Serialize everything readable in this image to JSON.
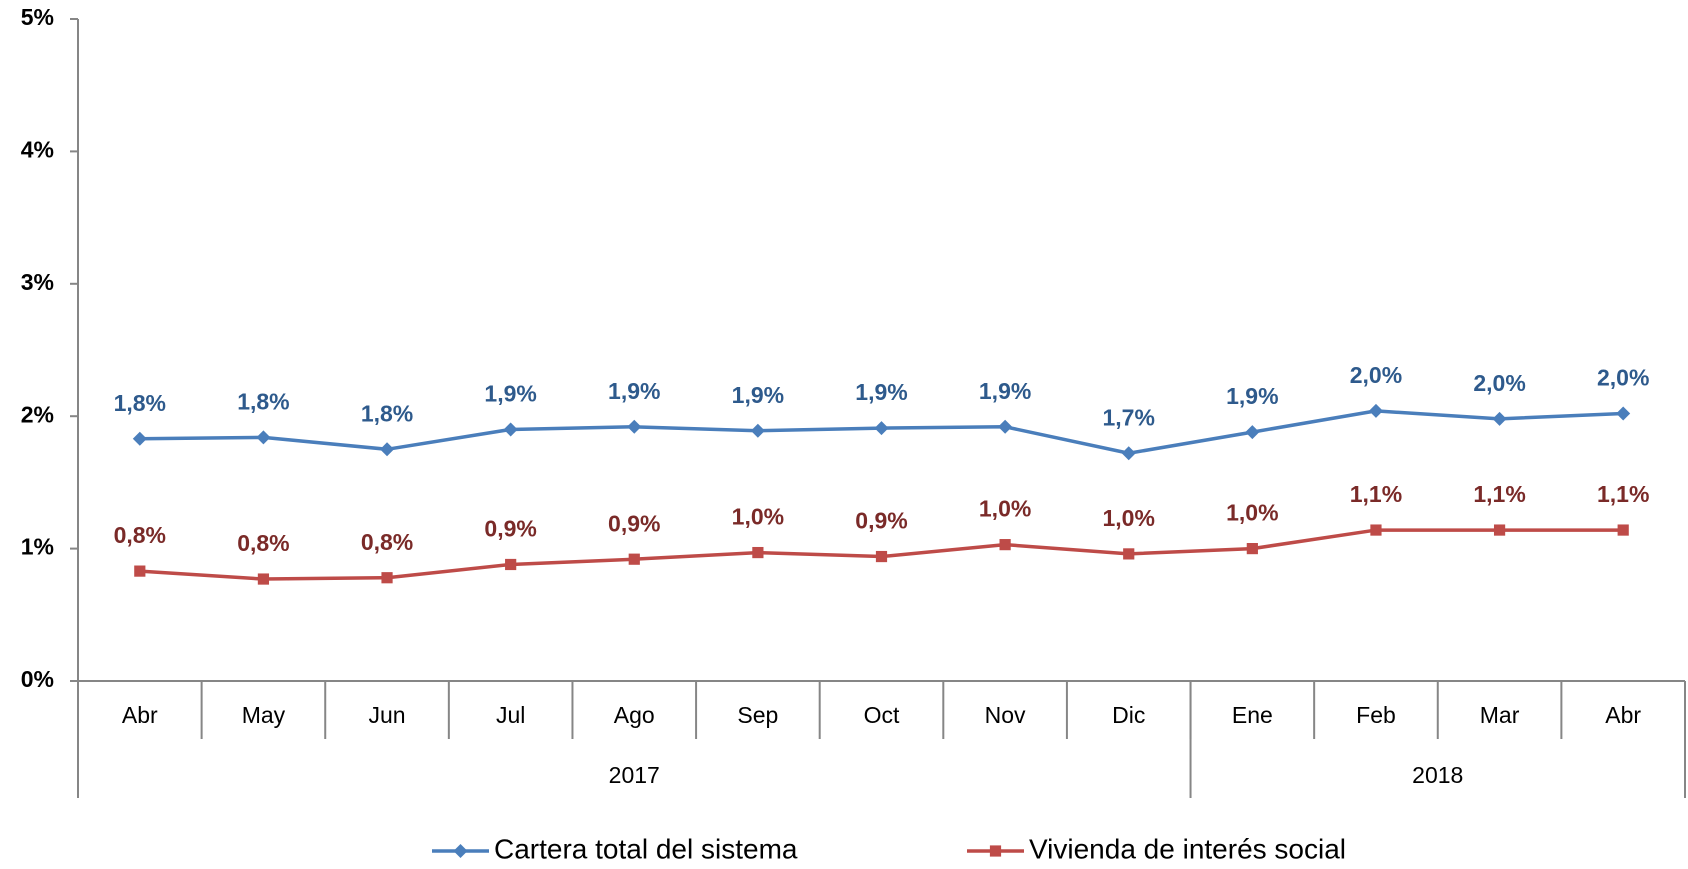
{
  "chart_data": {
    "type": "line",
    "categories": [
      "Abr",
      "May",
      "Jun",
      "Jul",
      "Ago",
      "Sep",
      "Oct",
      "Nov",
      "Dic",
      "Ene",
      "Feb",
      "Mar",
      "Abr"
    ],
    "x_groups": [
      {
        "name": "2017",
        "count": 9
      },
      {
        "name": "2018",
        "count": 4
      }
    ],
    "series": [
      {
        "name": "Cartera total del sistema",
        "color": "#4a7ebb",
        "label_color": "#2e5a8c",
        "marker": "diamond",
        "values": [
          1.83,
          1.84,
          1.75,
          1.9,
          1.92,
          1.89,
          1.91,
          1.92,
          1.72,
          1.88,
          2.04,
          1.98,
          2.02
        ],
        "value_labels": [
          "1,8%",
          "1,8%",
          "1,8%",
          "1,9%",
          "1,9%",
          "1,9%",
          "1,9%",
          "1,9%",
          "1,7%",
          "1,9%",
          "2,0%",
          "2,0%",
          "2,0%"
        ]
      },
      {
        "name": "Vivienda de interés social",
        "color": "#be4b48",
        "label_color": "#7a2a28",
        "marker": "square",
        "values": [
          0.83,
          0.77,
          0.78,
          0.88,
          0.92,
          0.97,
          0.94,
          1.03,
          0.96,
          1.0,
          1.14,
          1.14,
          1.14
        ],
        "value_labels": [
          "0,8%",
          "0,8%",
          "0,8%",
          "0,9%",
          "0,9%",
          "1,0%",
          "0,9%",
          "1,0%",
          "1,0%",
          "1,0%",
          "1,1%",
          "1,1%",
          "1,1%"
        ]
      }
    ],
    "ylim": [
      0,
      5
    ],
    "yticks": [
      {
        "value": 0,
        "label": "0%"
      },
      {
        "value": 1,
        "label": "1%"
      },
      {
        "value": 2,
        "label": "2%"
      },
      {
        "value": 3,
        "label": "3%"
      },
      {
        "value": 4,
        "label": "4%"
      },
      {
        "value": 5,
        "label": "5%"
      }
    ],
    "grid": false,
    "legend": "bottom"
  }
}
